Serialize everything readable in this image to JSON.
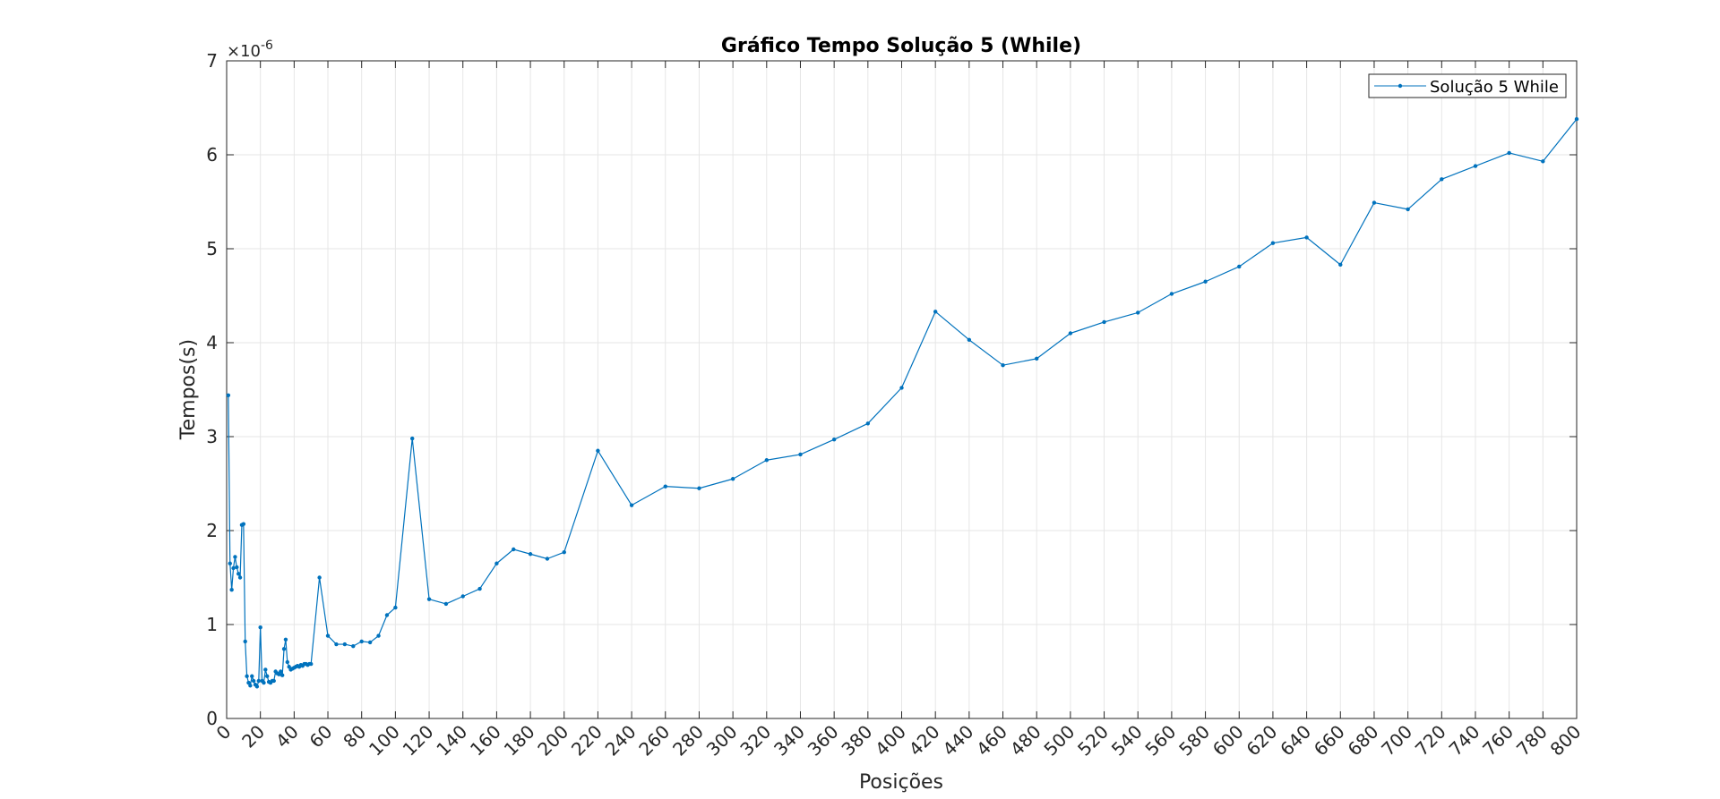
{
  "chart_data": {
    "type": "line",
    "title": "Gráfico Tempo Solução 5 (While)",
    "xlabel": "Posições",
    "ylabel": "Tempos(s)",
    "y_exponent_prefix": "×10",
    "y_exponent_power": "-6",
    "xlim": [
      0,
      800
    ],
    "ylim": [
      0,
      7
    ],
    "x_ticks": [
      0,
      20,
      40,
      60,
      80,
      100,
      120,
      140,
      160,
      180,
      200,
      220,
      240,
      260,
      280,
      300,
      320,
      340,
      360,
      380,
      400,
      420,
      440,
      460,
      480,
      500,
      520,
      540,
      560,
      580,
      600,
      620,
      640,
      660,
      680,
      700,
      720,
      740,
      760,
      780,
      800
    ],
    "x_tick_labels": [
      "0",
      "20",
      "40",
      "60",
      "80",
      "100",
      "120",
      "140",
      "160",
      "180",
      "200",
      "220",
      "240",
      "260",
      "280",
      "300",
      "320",
      "340",
      "360",
      "380",
      "400",
      "420",
      "440",
      "460",
      "480",
      "500",
      "520",
      "540",
      "560",
      "580",
      "600",
      "620",
      "640",
      "660",
      "680",
      "700",
      "720",
      "740",
      "760",
      "780",
      "800"
    ],
    "y_ticks": [
      0,
      1,
      2,
      3,
      4,
      5,
      6,
      7
    ],
    "y_tick_labels": [
      "0",
      "1",
      "2",
      "3",
      "4",
      "5",
      "6",
      "7"
    ],
    "grid": true,
    "legend_position": "top-right",
    "colors": {
      "series": "#0072BD",
      "grid": "#e6e6e6",
      "axis": "#262626"
    },
    "series": [
      {
        "name": "Solução 5 While",
        "x": [
          1,
          2,
          3,
          4,
          5,
          6,
          7,
          8,
          9,
          10,
          11,
          12,
          13,
          14,
          15,
          16,
          17,
          18,
          19,
          20,
          21,
          22,
          23,
          24,
          25,
          26,
          27,
          28,
          29,
          30,
          31,
          32,
          33,
          34,
          35,
          36,
          37,
          38,
          39,
          40,
          41,
          42,
          43,
          44,
          45,
          46,
          47,
          48,
          49,
          50,
          55,
          60,
          65,
          70,
          75,
          80,
          85,
          90,
          95,
          100,
          110,
          120,
          130,
          140,
          150,
          160,
          170,
          180,
          190,
          200,
          220,
          240,
          260,
          280,
          300,
          320,
          340,
          360,
          380,
          400,
          420,
          440,
          460,
          480,
          500,
          520,
          540,
          560,
          580,
          600,
          620,
          640,
          660,
          680,
          700,
          720,
          740,
          760,
          780,
          800
        ],
        "y": [
          3.44,
          1.65,
          1.37,
          1.6,
          1.72,
          1.61,
          1.54,
          1.5,
          2.06,
          2.07,
          0.82,
          0.45,
          0.38,
          0.35,
          0.45,
          0.4,
          0.36,
          0.34,
          0.4,
          0.97,
          0.4,
          0.38,
          0.52,
          0.45,
          0.39,
          0.38,
          0.4,
          0.4,
          0.5,
          0.48,
          0.47,
          0.5,
          0.46,
          0.74,
          0.84,
          0.6,
          0.55,
          0.52,
          0.53,
          0.54,
          0.55,
          0.56,
          0.55,
          0.57,
          0.56,
          0.58,
          0.58,
          0.57,
          0.58,
          0.58,
          1.5,
          0.88,
          0.79,
          0.79,
          0.77,
          0.82,
          0.81,
          0.88,
          1.1,
          1.18,
          2.98,
          1.27,
          1.22,
          1.3,
          1.38,
          1.65,
          1.8,
          1.75,
          1.7,
          1.77,
          2.85,
          2.27,
          2.47,
          2.45,
          2.55,
          2.75,
          2.81,
          2.97,
          3.14,
          3.52,
          4.33,
          4.03,
          3.76,
          3.83,
          4.1,
          4.22,
          4.32,
          4.52,
          4.65,
          4.81,
          5.06,
          5.12,
          4.83,
          5.49,
          5.42,
          5.74,
          5.88,
          6.02,
          5.93,
          6.38
        ]
      }
    ]
  }
}
